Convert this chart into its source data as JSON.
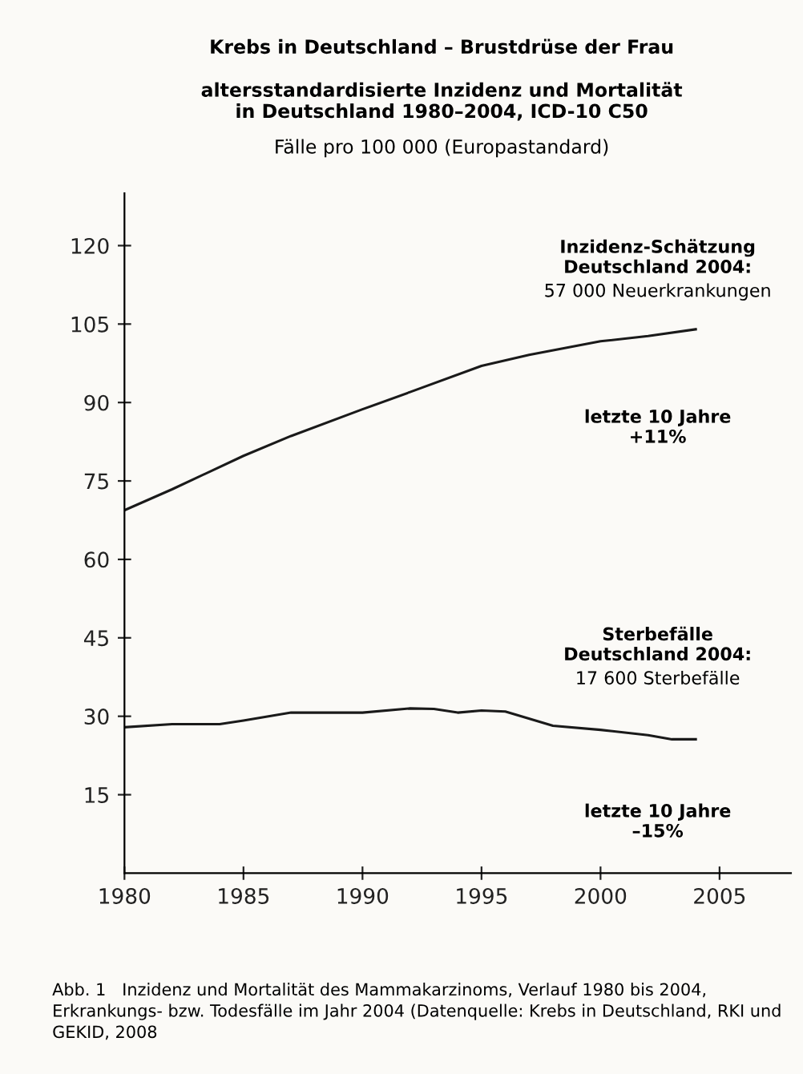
{
  "chart_data": {
    "type": "line",
    "title": "Krebs in Deutschland – Brustdrüse der Frau",
    "subtitle": "altersstandardisierte Inzidenz und Mortalität\nin Deutschland 1980–2004, ICD-10 C50",
    "ylabel": "Fälle pro 100 000 (Europastandard)",
    "series": [
      {
        "color": "#1a1a1a",
        "x": [
          1980,
          1982,
          1985,
          1987,
          1990,
          1992,
          1995,
          1997,
          2000,
          2002,
          2004
        ],
        "values": [
          69.4,
          73.4,
          79.8,
          83.6,
          88.7,
          92.0,
          97.0,
          99.1,
          101.7,
          102.7,
          104.0
        ]
      },
      {
        "color": "#1a1a1a",
        "x": [
          1980,
          1982,
          1984,
          1985,
          1987,
          1990,
          1992,
          1993,
          1994,
          1995,
          1996,
          1998,
          2000,
          2002,
          2003,
          2004
        ],
        "values": [
          27.9,
          28.5,
          28.5,
          29.2,
          30.7,
          30.7,
          31.5,
          31.4,
          30.7,
          31.1,
          30.9,
          28.2,
          27.4,
          26.4,
          25.6,
          25.6
        ]
      }
    ],
    "xlim": [
      1980,
      2008
    ],
    "ylim": [
      0,
      130
    ],
    "xticks": [
      1980,
      1985,
      1990,
      1995,
      2000,
      2005
    ],
    "yticks": [
      15,
      30,
      45,
      60,
      75,
      90,
      105,
      120
    ],
    "grid": false,
    "legend": false,
    "marker": "none",
    "line_style": "solid",
    "annotations": [
      "Inzidenz-Schätzung\nDeutschland 2004:",
      "57 000 Neuerkrankungen",
      "letzte 10 Jahre\n+11%",
      "Sterbefälle\nDeutschland 2004:",
      "17 600 Sterbefälle",
      "letzte 10 Jahre\n–15%",
      "Abb. 1   Inzidenz und Mortalität des Mammakarzinoms, Verlauf 1980 bis 2004, Erkrankungs- bzw. Todesfälle im Jahr 2004 (Datenquelle: Krebs in Deutschland, RKI und GEKID, 2008"
    ]
  }
}
